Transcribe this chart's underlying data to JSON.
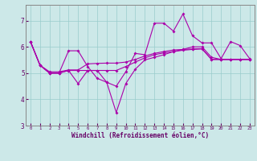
{
  "xlabel": "Windchill (Refroidissement éolien,°C)",
  "bg_color": "#cce8e8",
  "line_color": "#aa00aa",
  "grid_color": "#99cccc",
  "spine_color": "#888888",
  "tick_color": "#660066",
  "xlim": [
    -0.5,
    23.5
  ],
  "ylim": [
    3.0,
    7.6
  ],
  "yticks": [
    3,
    4,
    5,
    6,
    7
  ],
  "xticks": [
    0,
    1,
    2,
    3,
    4,
    5,
    6,
    7,
    8,
    9,
    10,
    11,
    12,
    13,
    14,
    15,
    16,
    17,
    18,
    19,
    20,
    21,
    22,
    23
  ],
  "lines": [
    [
      6.2,
      5.3,
      5.0,
      5.0,
      5.85,
      5.85,
      5.25,
      4.8,
      4.65,
      4.5,
      5.05,
      5.75,
      5.7,
      6.9,
      6.9,
      6.6,
      7.25,
      6.42,
      6.15,
      6.15,
      5.55,
      6.2,
      6.05,
      5.55
    ],
    [
      6.2,
      5.3,
      5.0,
      5.0,
      5.1,
      5.1,
      5.1,
      5.1,
      4.65,
      3.5,
      4.6,
      5.15,
      5.5,
      5.6,
      5.7,
      5.82,
      5.9,
      6.0,
      6.0,
      5.6,
      5.52,
      5.52,
      5.52,
      5.52
    ],
    [
      6.2,
      5.3,
      5.0,
      5.0,
      5.1,
      4.6,
      5.1,
      5.1,
      5.1,
      5.1,
      5.25,
      5.42,
      5.58,
      5.7,
      5.77,
      5.82,
      5.87,
      5.9,
      5.92,
      5.52,
      5.52,
      5.52,
      5.52,
      5.52
    ],
    [
      6.2,
      5.3,
      5.05,
      5.05,
      5.12,
      5.12,
      5.35,
      5.37,
      5.38,
      5.38,
      5.42,
      5.52,
      5.65,
      5.75,
      5.82,
      5.88,
      5.9,
      5.92,
      5.93,
      5.52,
      5.52,
      5.52,
      5.52,
      5.52
    ]
  ]
}
